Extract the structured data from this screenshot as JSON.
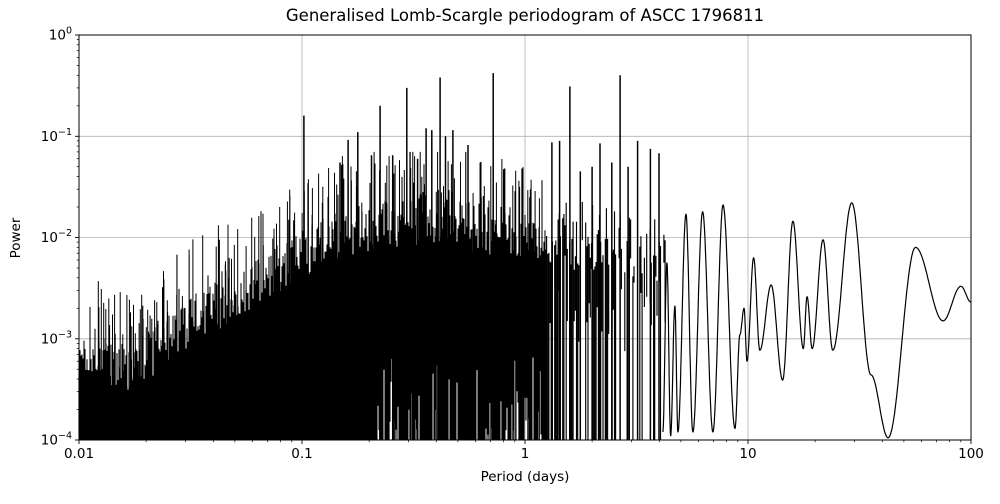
{
  "chart_data": {
    "type": "line",
    "title": "Generalised Lomb-Scargle periodogram of ASCC 1796811",
    "xlabel": "Period (days)",
    "ylabel": "Power",
    "xscale": "log",
    "yscale": "log",
    "xlim": [
      0.01,
      100
    ],
    "ylim": [
      0.0001,
      1
    ],
    "x_tick_labels": [
      "0.01",
      "0.1",
      "1",
      "10",
      "100"
    ],
    "x_tick_values": [
      0.01,
      0.1,
      1,
      10,
      100
    ],
    "y_tick_exponents": [
      0,
      -1,
      -2,
      -3,
      -4
    ],
    "grid": true,
    "legend": false,
    "line_color": "#000000",
    "grid_color": "#b0b0b0",
    "background_color": "#ffffff",
    "noise_region": {
      "period_range": [
        0.01,
        1.25
      ],
      "floor_power": 0.0001,
      "envelope": [
        [
          0.01,
          0.00065
        ],
        [
          0.012,
          0.00075
        ],
        [
          0.014,
          0.0006
        ],
        [
          0.019,
          0.0005
        ],
        [
          0.023,
          0.0009
        ],
        [
          0.027,
          0.0012
        ],
        [
          0.035,
          0.0017
        ],
        [
          0.043,
          0.0022
        ],
        [
          0.055,
          0.003
        ],
        [
          0.073,
          0.0045
        ],
        [
          0.1,
          0.007
        ],
        [
          0.13,
          0.0095
        ],
        [
          0.17,
          0.012
        ],
        [
          0.25,
          0.014
        ],
        [
          0.35,
          0.015
        ],
        [
          0.5,
          0.013
        ],
        [
          0.7,
          0.012
        ],
        [
          1.0,
          0.011
        ],
        [
          1.4,
          0.011
        ],
        [
          2.0,
          0.01
        ],
        [
          3.0,
          0.0085
        ],
        [
          4.3,
          0.007
        ]
      ]
    },
    "sparse_region": {
      "period_range": [
        1.25,
        4.3
      ]
    },
    "major_peaks": [
      [
        0.102,
        0.16
      ],
      [
        0.148,
        0.055
      ],
      [
        0.161,
        0.092
      ],
      [
        0.178,
        0.11
      ],
      [
        0.205,
        0.065
      ],
      [
        0.224,
        0.2
      ],
      [
        0.255,
        0.065
      ],
      [
        0.295,
        0.3
      ],
      [
        0.33,
        0.06
      ],
      [
        0.36,
        0.12
      ],
      [
        0.382,
        0.115
      ],
      [
        0.416,
        0.38
      ],
      [
        0.44,
        0.1
      ],
      [
        0.475,
        0.115
      ],
      [
        0.555,
        0.082
      ],
      [
        0.63,
        0.055
      ],
      [
        0.72,
        0.42
      ],
      [
        0.81,
        0.048
      ],
      [
        0.97,
        0.048
      ],
      [
        1.06,
        0.03
      ],
      [
        1.32,
        0.087
      ],
      [
        1.43,
        0.09
      ],
      [
        1.59,
        0.31
      ],
      [
        1.77,
        0.045
      ],
      [
        2.0,
        0.05
      ],
      [
        2.17,
        0.085
      ],
      [
        2.45,
        0.055
      ],
      [
        2.67,
        0.4
      ],
      [
        2.9,
        0.05
      ],
      [
        3.2,
        0.09
      ],
      [
        3.65,
        0.075
      ],
      [
        3.99,
        0.068
      ]
    ],
    "smooth_curve": [
      [
        4.15,
        0.00012
      ],
      [
        4.33,
        0.0056
      ],
      [
        4.5,
        0.00011
      ],
      [
        4.7,
        0.0021
      ],
      [
        4.85,
        0.00012
      ],
      [
        5.27,
        0.017
      ],
      [
        5.66,
        0.00012
      ],
      [
        6.26,
        0.018
      ],
      [
        6.96,
        0.00012
      ],
      [
        7.73,
        0.021
      ],
      [
        8.74,
        0.00013
      ],
      [
        9.2,
        0.0011
      ],
      [
        9.6,
        0.002
      ],
      [
        9.9,
        0.0006
      ],
      [
        10.6,
        0.0063
      ],
      [
        11.3,
        0.00077
      ],
      [
        12.7,
        0.0034
      ],
      [
        14.3,
        0.00039
      ],
      [
        15.9,
        0.0145
      ],
      [
        17.7,
        0.0008
      ],
      [
        18.4,
        0.0026
      ],
      [
        19.4,
        0.0008
      ],
      [
        21.7,
        0.0095
      ],
      [
        24.0,
        0.00077
      ],
      [
        29.2,
        0.022
      ],
      [
        35.6,
        0.00044
      ],
      [
        42.5,
        0.000105
      ],
      [
        56.4,
        0.008
      ],
      [
        74.9,
        0.0015
      ],
      [
        90.1,
        0.0033
      ],
      [
        100,
        0.0023
      ]
    ]
  }
}
